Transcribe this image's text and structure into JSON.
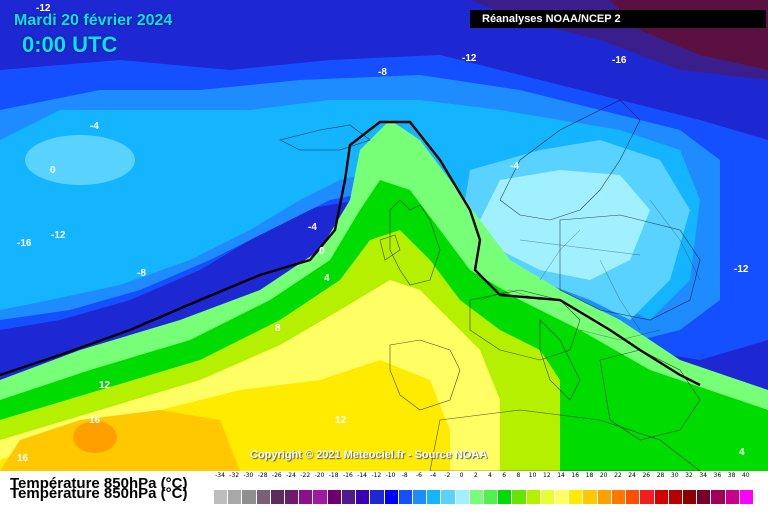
{
  "header": {
    "date": "Mardi 20 février 2024",
    "time": "0:00 UTC",
    "source": "Réanalyses NOAA/NCEP 2"
  },
  "map": {
    "copyright": "Copyright © 2021 Meteociel.fr - Source NOAA",
    "contour_labels": [
      {
        "text": "-12",
        "color": "#ffffff"
      },
      {
        "text": "-12",
        "color": "#ffffff"
      },
      {
        "text": "-16",
        "color": "#ffffff"
      },
      {
        "text": "-8",
        "color": "#ffffff"
      },
      {
        "text": "-4",
        "color": "#ffffff"
      },
      {
        "text": "0",
        "color": "#ffffff"
      },
      {
        "text": "-16",
        "color": "#ffffff"
      },
      {
        "text": "-12",
        "color": "#ffffff"
      },
      {
        "text": "-8",
        "color": "#ffffff"
      },
      {
        "text": "-4",
        "color": "#ffffff"
      },
      {
        "text": "0",
        "color": "#ffffff"
      },
      {
        "text": "4",
        "color": "#ffffff"
      },
      {
        "text": "8",
        "color": "#ffffff"
      },
      {
        "text": "-4",
        "color": "#ffffff"
      },
      {
        "text": "-12",
        "color": "#ffffff"
      },
      {
        "text": "12",
        "color": "#ffffff"
      },
      {
        "text": "16",
        "color": "#ffffff"
      },
      {
        "text": "12",
        "color": "#ffffff"
      },
      {
        "text": "16",
        "color": "#ffffff"
      },
      {
        "text": "4",
        "color": "#ffffff"
      }
    ]
  },
  "legend": {
    "label": "Température 850hPa (°C)",
    "ticks": [
      "-34",
      "-32",
      "-30",
      "-28",
      "-26",
      "-24",
      "-22",
      "-20",
      "-18",
      "-16",
      "-14",
      "-12",
      "-10",
      "-8",
      "-6",
      "-4",
      "-2",
      "0",
      "2",
      "4",
      "6",
      "8",
      "10",
      "12",
      "14",
      "16",
      "18",
      "20",
      "22",
      "24",
      "26",
      "28",
      "30",
      "32",
      "34",
      "36",
      "38",
      "40"
    ],
    "colors": [
      "#bdbdbd",
      "#a8a8a8",
      "#8f8f8f",
      "#7a5f7a",
      "#5c2d5c",
      "#6e1a6e",
      "#8c0f8c",
      "#a01aa0",
      "#6e006e",
      "#501a8c",
      "#3c00b4",
      "#1e28d2",
      "#0000ff",
      "#1450ff",
      "#1e8cff",
      "#14b4ff",
      "#5ad2ff",
      "#a0f0ff",
      "#78ff78",
      "#50f050",
      "#00dc00",
      "#64e600",
      "#b4f000",
      "#e6ff32",
      "#ffff64",
      "#ffeb00",
      "#ffc800",
      "#ffa000",
      "#ff7800",
      "#ff5000",
      "#f01e1e",
      "#d20000",
      "#b40000",
      "#8c0000",
      "#780028",
      "#a0005a",
      "#c8008c",
      "#ff00ff"
    ]
  }
}
